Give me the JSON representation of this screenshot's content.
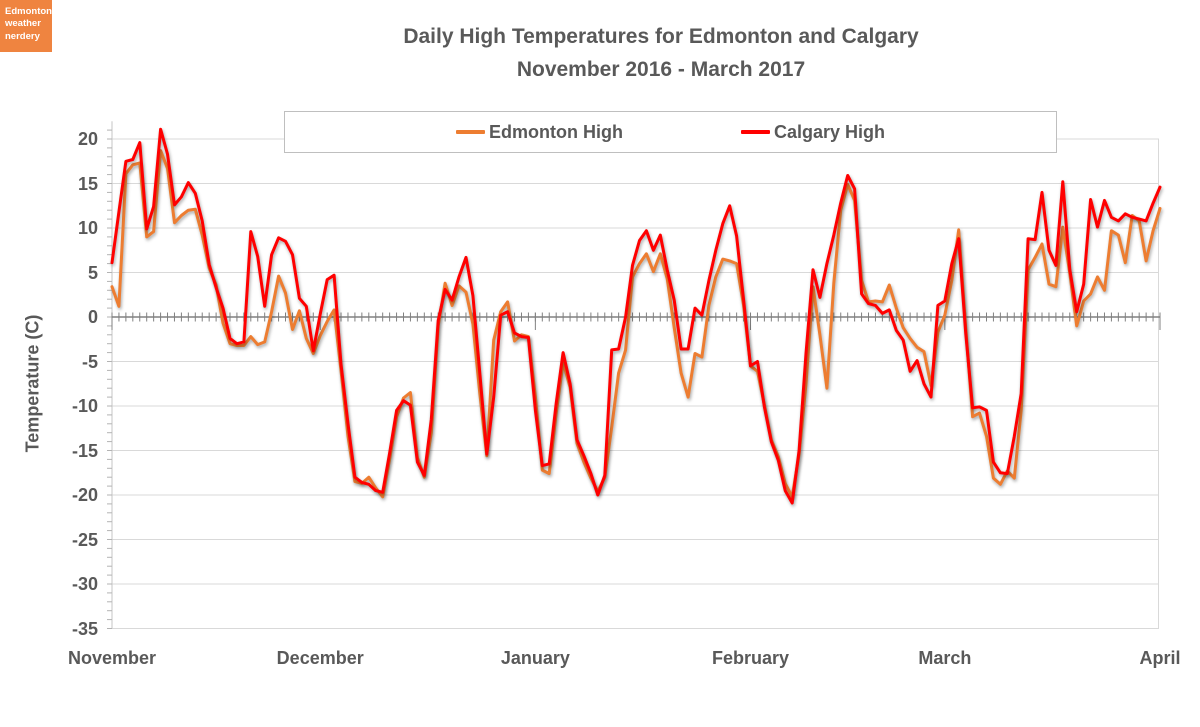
{
  "logo": {
    "lines": [
      "Edmonton",
      "weather",
      "nerdery"
    ],
    "bg_color": "#EF8440"
  },
  "title": {
    "line1": "Daily High Temperatures for Edmonton and Calgary",
    "line2": "November 2016 - March 2017"
  },
  "legend": {
    "items": [
      {
        "label": "Edmonton High",
        "color": "#ED7D31"
      },
      {
        "label": "Calgary High",
        "color": "#FF0000"
      }
    ],
    "position": "top"
  },
  "chart_data": {
    "type": "line",
    "title": "Daily High Temperatures for Edmonton and Calgary November 2016 - March 2017",
    "xlabel": "",
    "ylabel": "Temperature (C)",
    "ylim": [
      -35,
      20
    ],
    "y_tick_step": 5,
    "y_tick_labels": [
      "20",
      "15",
      "10",
      "5",
      "0",
      "-5",
      "-10",
      "-15",
      "-20",
      "-25",
      "-30",
      "-35"
    ],
    "y_tick_values": [
      20,
      15,
      10,
      5,
      0,
      -5,
      -10,
      -15,
      -20,
      -25,
      -30,
      -35
    ],
    "grid": true,
    "x_unit": "day",
    "x_range_days": 151,
    "month_tick_labels": [
      "November",
      "December",
      "January",
      "February",
      "March",
      "April"
    ],
    "month_day_offsets": [
      0,
      30,
      61,
      92,
      120,
      151
    ],
    "series": [
      {
        "name": "Edmonton High",
        "color": "#ED7D31",
        "values": [
          3.4,
          1.2,
          16.1,
          17.1,
          17.3,
          9.0,
          9.6,
          18.7,
          16.7,
          10.6,
          11.4,
          12.0,
          12.1,
          9.2,
          5.5,
          3.6,
          -0.7,
          -3.0,
          -3.2,
          -3.2,
          -2.2,
          -3.1,
          -2.8,
          0.6,
          4.6,
          2.7,
          -1.4,
          0.7,
          -2.4,
          -4.1,
          -2.1,
          -0.5,
          0.8,
          -6.0,
          -13.4,
          -18.5,
          -18.7,
          -18.0,
          -19.2,
          -20.2,
          -16.0,
          -11.2,
          -9.1,
          -8.5,
          -15.8,
          -18.0,
          -13.0,
          -1.0,
          3.8,
          1.3,
          3.5,
          2.8,
          -0.8,
          -8.6,
          -15.6,
          -2.6,
          0.6,
          1.7,
          -2.7,
          -2.0,
          -2.2,
          -9.0,
          -17.2,
          -17.6,
          -10.8,
          -5.1,
          -7.9,
          -14.2,
          -16.3,
          -18.1,
          -19.6,
          -18.0,
          -12.4,
          -6.3,
          -3.7,
          4.5,
          6.0,
          7.1,
          5.1,
          7.1,
          4.3,
          -1.2,
          -6.3,
          -9.0,
          -4.1,
          -4.5,
          1.3,
          4.5,
          6.5,
          6.3,
          6.0,
          1.3,
          -5.5,
          -6.1,
          -9.9,
          -13.8,
          -15.7,
          -18.7,
          -20.2,
          -15.4,
          -7.5,
          3.4,
          -2.0,
          -8.0,
          3.8,
          12.0,
          14.9,
          13.1,
          4.1,
          1.7,
          1.8,
          1.7,
          3.6,
          1.0,
          -1.2,
          -2.4,
          -3.4,
          -3.9,
          -7.7,
          -1.7,
          0.2,
          4.1,
          9.8,
          -1.2,
          -11.2,
          -10.8,
          -13.4,
          -18.1,
          -18.8,
          -17.3,
          -18.1,
          -10.5,
          5.3,
          6.7,
          8.2,
          3.7,
          3.4,
          10.1,
          4.9,
          -1.0,
          1.8,
          2.6,
          4.5,
          3.0,
          9.7,
          9.2,
          6.1,
          11.4,
          10.8,
          6.3,
          9.7,
          12.2
        ]
      },
      {
        "name": "Calgary High",
        "color": "#FF0000",
        "values": [
          6.1,
          11.8,
          17.5,
          17.7,
          19.6,
          9.9,
          12.4,
          21.1,
          18.3,
          12.6,
          13.5,
          15.1,
          13.9,
          10.8,
          5.9,
          3.3,
          1.0,
          -2.4,
          -3.0,
          -2.8,
          9.6,
          6.8,
          1.2,
          7.0,
          8.9,
          8.5,
          7.0,
          2.1,
          1.2,
          -3.8,
          0.3,
          4.2,
          4.7,
          -5.3,
          -12.0,
          -18.0,
          -18.6,
          -18.8,
          -19.5,
          -19.7,
          -15.3,
          -10.5,
          -9.4,
          -9.9,
          -16.3,
          -17.8,
          -11.5,
          -0.4,
          3.1,
          1.9,
          4.5,
          6.7,
          2.4,
          -6.3,
          -15.4,
          -9.0,
          0.2,
          0.6,
          -1.8,
          -2.2,
          -2.3,
          -10.5,
          -16.7,
          -16.5,
          -9.7,
          -4.0,
          -7.5,
          -13.8,
          -15.6,
          -17.6,
          -20.0,
          -17.8,
          -3.7,
          -3.6,
          0.0,
          5.8,
          8.6,
          9.7,
          7.5,
          9.2,
          5.3,
          1.9,
          -3.6,
          -3.6,
          1.0,
          0.2,
          4.1,
          7.5,
          10.5,
          12.5,
          9.1,
          1.9,
          -5.5,
          -5.0,
          -10.1,
          -14.0,
          -16.1,
          -19.5,
          -20.9,
          -15.0,
          -4.1,
          5.3,
          2.2,
          6.0,
          9.2,
          12.8,
          15.9,
          14.4,
          2.6,
          1.5,
          1.3,
          0.4,
          0.8,
          -1.5,
          -2.6,
          -6.1,
          -4.9,
          -7.5,
          -9.0,
          1.3,
          1.8,
          6.0,
          8.8,
          -1.8,
          -10.2,
          -10.1,
          -10.5,
          -16.3,
          -17.5,
          -17.6,
          -13.4,
          -8.6,
          8.8,
          8.7,
          14.0,
          7.5,
          5.8,
          15.2,
          5.3,
          0.6,
          3.7,
          13.2,
          10.1,
          13.1,
          11.2,
          10.8,
          11.6,
          11.2,
          11.0,
          10.8,
          12.8,
          14.6
        ]
      }
    ]
  }
}
